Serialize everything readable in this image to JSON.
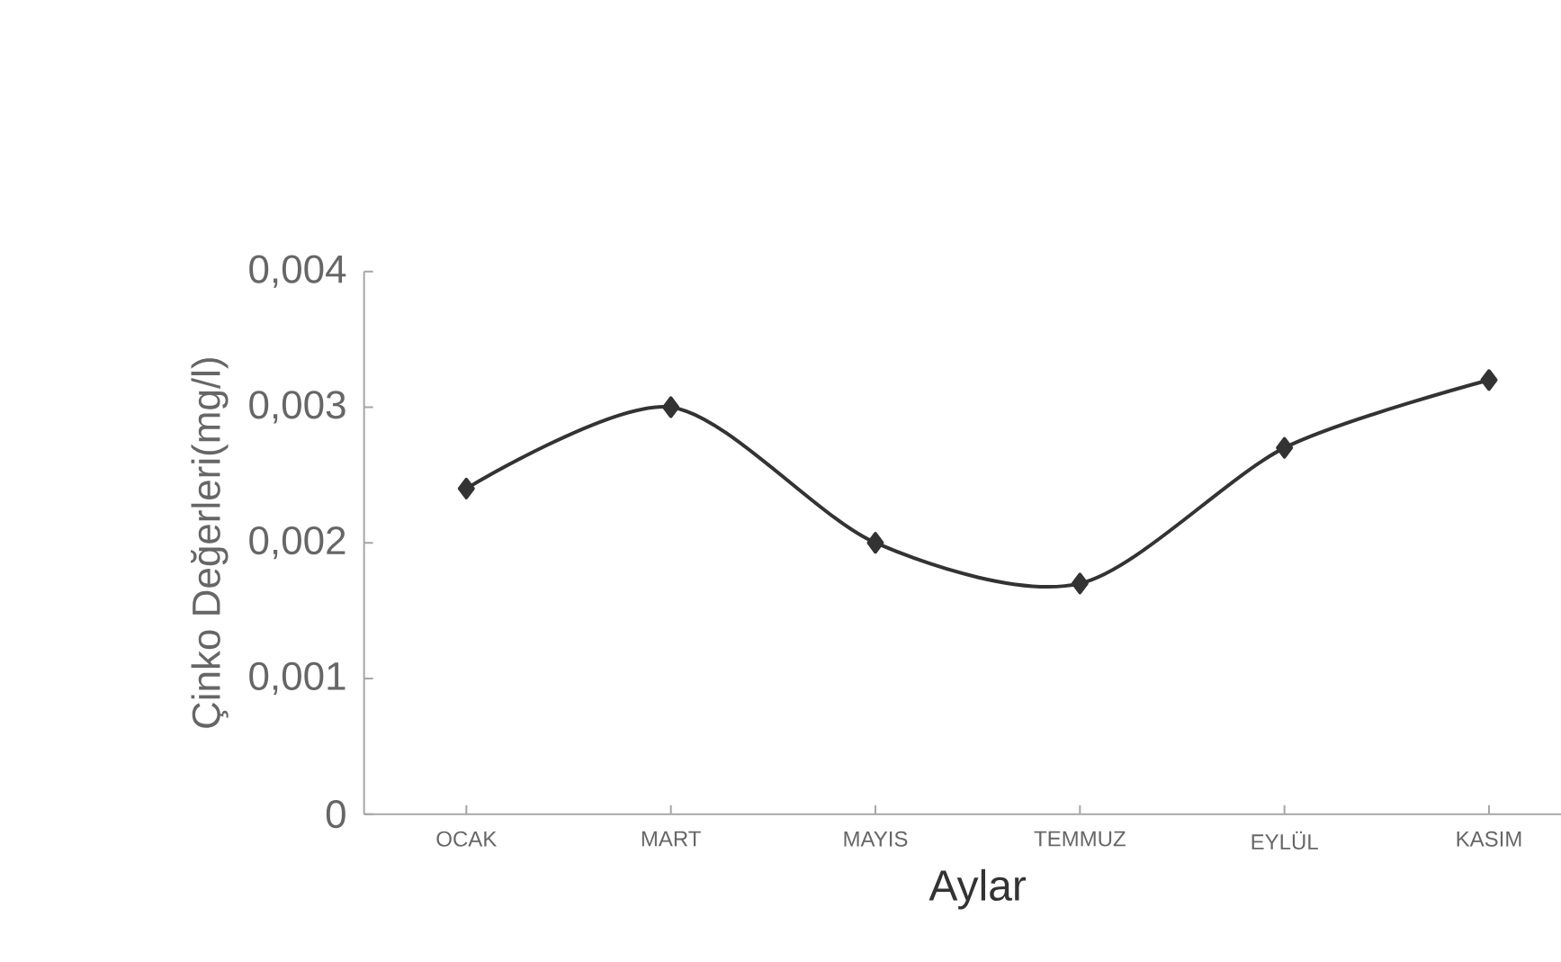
{
  "chart_data": {
    "type": "line",
    "xlabel": "Aylar",
    "ylabel": "Çinko Değerleri(mg/l)",
    "categories": [
      "OCAK",
      "MART",
      "MAYIS",
      "TEMMUZ",
      "EYLÜL",
      "KASIM"
    ],
    "values": [
      0.0024,
      0.003,
      0.002,
      0.0017,
      0.0027,
      0.0032
    ],
    "color": "#333333",
    "marker": "diamond",
    "line_style": "solid",
    "ylim": [
      0,
      0.004
    ],
    "yticks": [
      0,
      {
        "value": 0.001,
        "label": "0,001"
      },
      {
        "value": 0.002,
        "label": "0,002"
      },
      {
        "value": 0.003,
        "label": "0,003"
      },
      {
        "value": 0.004,
        "label": "0,004"
      }
    ]
  }
}
